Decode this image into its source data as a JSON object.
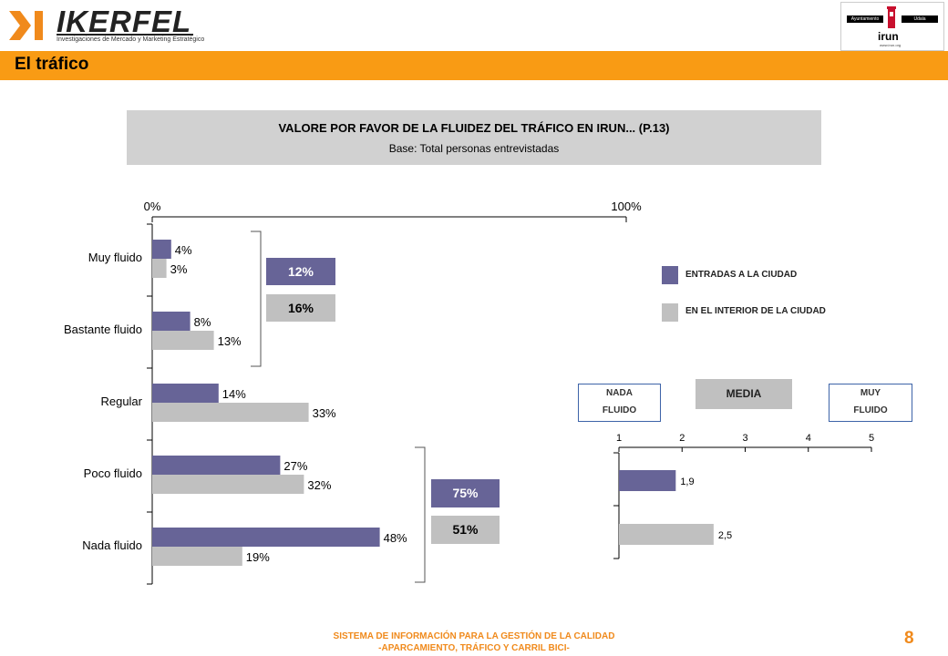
{
  "header": {
    "logo_text": "IKERFEL",
    "logo_subtitle": "Investigaciones de Mercado y Marketing Estratégico",
    "badge": {
      "left_label": "Ayuntamiento",
      "right_label": "Udala",
      "name": "irun",
      "url": "www.irun.org"
    }
  },
  "section_title": "El tráfico",
  "question": {
    "title": "VALORE POR FAVOR DE LA FLUIDEZ DEL TRÁFICO EN IRUN... (P.13)",
    "base": "Base: Total personas entrevistadas"
  },
  "legend": {
    "items": [
      {
        "label": "ENTRADAS A LA CIUDAD",
        "color": "#676497"
      },
      {
        "label": "EN EL INTERIOR DE LA CIUDAD",
        "color": "#c0c0c0"
      }
    ]
  },
  "summary": {
    "top": {
      "dark": "12%",
      "light": "16%"
    },
    "bottom": {
      "dark": "75%",
      "light": "51%"
    }
  },
  "scale": {
    "left": [
      "NADA",
      "FLUIDO"
    ],
    "middle": "MEDIA",
    "right": [
      "MUY",
      "FLUIDO"
    ]
  },
  "chart_data": [
    {
      "type": "bar",
      "orientation": "horizontal",
      "categories": [
        "Muy fluido",
        "Bastante fluido",
        "Regular",
        "Poco fluido",
        "Nada fluido"
      ],
      "series": [
        {
          "name": "ENTRADAS A LA CIUDAD",
          "color": "#676497",
          "values": [
            4,
            8,
            14,
            27,
            48
          ],
          "labels": [
            "4%",
            "8%",
            "14%",
            "27%",
            "48%"
          ]
        },
        {
          "name": "EN EL INTERIOR DE LA CIUDAD",
          "color": "#c0c0c0",
          "values": [
            3,
            13,
            33,
            32,
            19
          ],
          "labels": [
            "3%",
            "13%",
            "33%",
            "32%",
            "19%"
          ]
        }
      ],
      "xlim": [
        0,
        100
      ],
      "tick_labels": [
        "0%",
        "100%"
      ],
      "legend": "right"
    },
    {
      "type": "bar",
      "orientation": "horizontal",
      "categories": [
        "ENTRADAS A LA CIUDAD",
        "EN EL INTERIOR DE LA CIUDAD"
      ],
      "series": [
        {
          "name": "MEDIA",
          "values": [
            1.9,
            2.5
          ],
          "labels": [
            "1,9",
            "2,5"
          ],
          "colors": [
            "#676497",
            "#c0c0c0"
          ]
        }
      ],
      "xlim": [
        1,
        5
      ],
      "ticks": [
        1,
        2,
        3,
        4,
        5
      ],
      "tick_labels": [
        "1",
        "2",
        "3",
        "4",
        "5"
      ]
    }
  ],
  "footer": {
    "line1": "SISTEMA DE INFORMACIÓN PARA LA GESTIÓN DE LA CALIDAD",
    "line2": "-APARCAMIENTO, TRÁFICO Y CARRIL BICI-",
    "page": "8"
  }
}
